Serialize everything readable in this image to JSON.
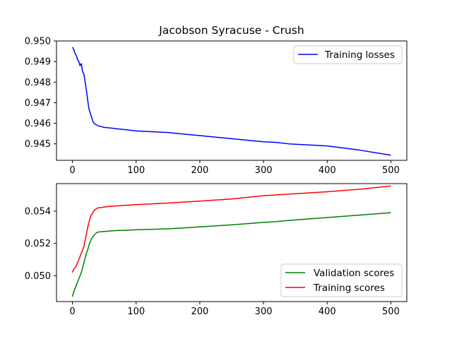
{
  "chart_data": [
    {
      "type": "line",
      "title": "Jacobson Syracuse - Crush",
      "xlabel": "",
      "ylabel": "",
      "xlim": [
        -25,
        525
      ],
      "ylim": [
        0.9442,
        0.95
      ],
      "xticks": [
        0,
        100,
        200,
        300,
        400,
        500
      ],
      "yticks": [
        0.945,
        0.946,
        0.947,
        0.948,
        0.949,
        0.95
      ],
      "ytick_labels": [
        "0.945",
        "0.946",
        "0.947",
        "0.948",
        "0.949",
        "0.950"
      ],
      "legend_position": "top-right",
      "series": [
        {
          "name": "Training losses",
          "color": "#0000ff",
          "x": [
            0,
            2,
            4,
            6,
            8,
            10,
            12,
            14,
            16,
            18,
            20,
            22,
            24,
            26,
            28,
            30,
            32,
            34,
            36,
            38,
            40,
            45,
            50,
            60,
            70,
            80,
            100,
            150,
            200,
            250,
            300,
            320,
            340,
            400,
            450,
            500
          ],
          "y": [
            0.9497,
            0.9496,
            0.9494,
            0.9493,
            0.9491,
            0.949,
            0.9488,
            0.9489,
            0.9485,
            0.9484,
            0.948,
            0.9476,
            0.9471,
            0.9467,
            0.9465,
            0.9463,
            0.9461,
            0.946,
            0.94595,
            0.94592,
            0.94588,
            0.94584,
            0.9458,
            0.94577,
            0.94573,
            0.9457,
            0.94563,
            0.94555,
            0.9454,
            0.94525,
            0.9451,
            0.94507,
            0.945,
            0.9449,
            0.9447,
            0.94445
          ]
        }
      ]
    },
    {
      "type": "line",
      "title": "",
      "xlabel": "",
      "ylabel": "",
      "xlim": [
        -25,
        525
      ],
      "ylim": [
        0.0484,
        0.0557
      ],
      "xticks": [
        0,
        100,
        200,
        300,
        400,
        500
      ],
      "yticks": [
        0.05,
        0.052,
        0.054
      ],
      "ytick_labels": [
        "0.050",
        "0.052",
        "0.054"
      ],
      "legend_position": "bottom-right",
      "series": [
        {
          "name": "Validation scores",
          "color": "#008000",
          "x": [
            0,
            2,
            4,
            6,
            8,
            10,
            12,
            14,
            16,
            18,
            20,
            22,
            24,
            26,
            28,
            30,
            32,
            34,
            36,
            38,
            40,
            45,
            50,
            60,
            70,
            80,
            100,
            150,
            200,
            250,
            300,
            320,
            340,
            400,
            450,
            500
          ],
          "y": [
            0.0487,
            0.049,
            0.0492,
            0.0494,
            0.0496,
            0.0498,
            0.05,
            0.0502,
            0.0505,
            0.0508,
            0.0511,
            0.0514,
            0.0516,
            0.0519,
            0.0521,
            0.0523,
            0.0524,
            0.0525,
            0.0526,
            0.05265,
            0.0527,
            0.05272,
            0.05274,
            0.05277,
            0.0528,
            0.05281,
            0.05284,
            0.0529,
            0.05302,
            0.05315,
            0.0533,
            0.05335,
            0.05342,
            0.0536,
            0.05375,
            0.0539
          ]
        },
        {
          "name": "Training scores",
          "color": "#ff0000",
          "x": [
            0,
            2,
            4,
            6,
            8,
            10,
            12,
            14,
            16,
            18,
            20,
            22,
            24,
            26,
            28,
            30,
            32,
            34,
            36,
            38,
            40,
            45,
            50,
            60,
            70,
            80,
            100,
            150,
            200,
            250,
            300,
            320,
            340,
            400,
            450,
            500
          ],
          "y": [
            0.0502,
            0.0504,
            0.0505,
            0.0506,
            0.0508,
            0.051,
            0.0512,
            0.0514,
            0.0516,
            0.0518,
            0.0522,
            0.0526,
            0.053,
            0.0533,
            0.0536,
            0.0538,
            0.0539,
            0.05405,
            0.0541,
            0.05415,
            0.0542,
            0.05422,
            0.05425,
            0.0543,
            0.05432,
            0.05435,
            0.0544,
            0.0545,
            0.05462,
            0.05475,
            0.05495,
            0.055,
            0.05505,
            0.0552,
            0.05535,
            0.05555
          ]
        }
      ]
    }
  ]
}
